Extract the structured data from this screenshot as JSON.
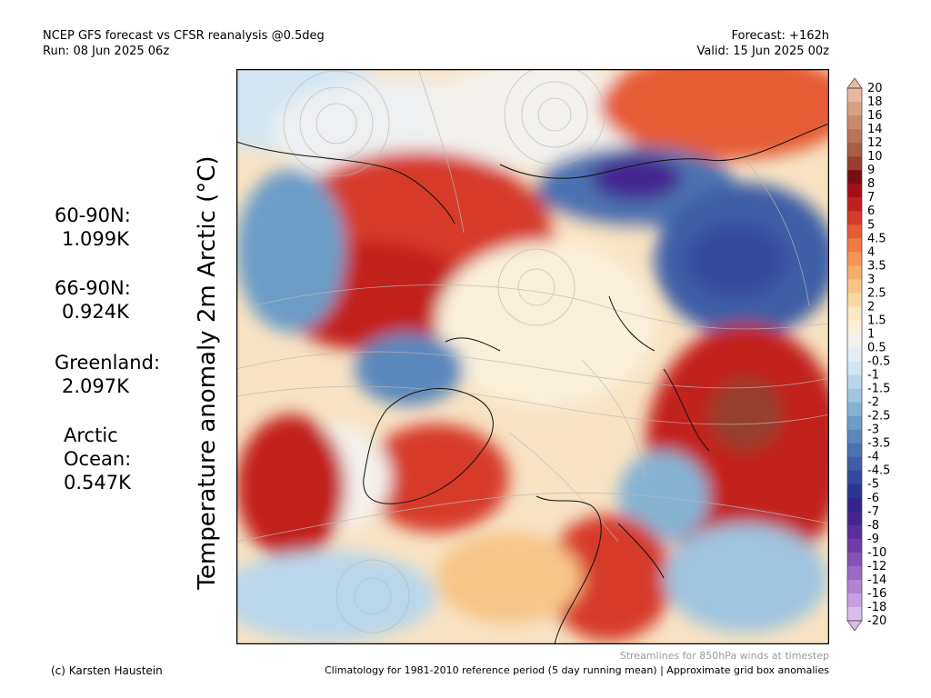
{
  "header": {
    "title_line1": "NCEP GFS forecast vs CFSR reanalysis @0.5deg",
    "title_line2": "Run: 08 Jun 2025 06z",
    "forecast": "Forecast: +162h",
    "valid": "Valid: 15 Jun 2025 00z"
  },
  "axis_label": "Temperature anomaly 2m Arctic (°C)",
  "stats": [
    {
      "name": "60-90N:",
      "value": "1.099K"
    },
    {
      "name": "66-90N:",
      "value": "0.924K"
    },
    {
      "name": "Greenland:",
      "value": "2.097K"
    },
    {
      "name": "Arctic Ocean:",
      "value": "0.547K"
    }
  ],
  "colorbar": {
    "labels": [
      "20",
      "18",
      "16",
      "14",
      "12",
      "10",
      "9",
      "8",
      "7",
      "6",
      "5",
      "4.5",
      "4",
      "3.5",
      "3",
      "2.5",
      "2",
      "1.5",
      "1",
      "0.5",
      "-0.5",
      "-1",
      "-1.5",
      "-2",
      "-2.5",
      "-3",
      "-3.5",
      "-4",
      "-4.5",
      "-5",
      "-6",
      "-7",
      "-8",
      "-9",
      "-10",
      "-12",
      "-14",
      "-16",
      "-18",
      "-20"
    ],
    "colors": [
      "#e8b9a0",
      "#d8a184",
      "#c98a6c",
      "#b97457",
      "#a85e44",
      "#963f2e",
      "#7a0d12",
      "#a30f18",
      "#c2201e",
      "#d63a2a",
      "#e55c36",
      "#ee7a45",
      "#f39657",
      "#f6ae6d",
      "#f8c588",
      "#f9d7a4",
      "#fae6c1",
      "#faf1dc",
      "#f4f2ee",
      "#e6eef5",
      "#d3e5f1",
      "#bad7ea",
      "#9fc5df",
      "#85b2d3",
      "#6c9dc8",
      "#5a88bd",
      "#4b73b1",
      "#3e5ea6",
      "#34499b",
      "#2c3590",
      "#33258a",
      "#45268f",
      "#592f99",
      "#6d3ca5",
      "#8551b4",
      "#9b68c4",
      "#b283d3",
      "#c6a0e0",
      "#d9bfec"
    ]
  },
  "footer": {
    "credit": "(c) Karsten Haustein",
    "stream_note": "Streamlines for 850hPa winds at timestep",
    "clim_note": "Climatology for 1981-2010 reference period (5 day running mean) | Approximate grid box anomalies"
  }
}
